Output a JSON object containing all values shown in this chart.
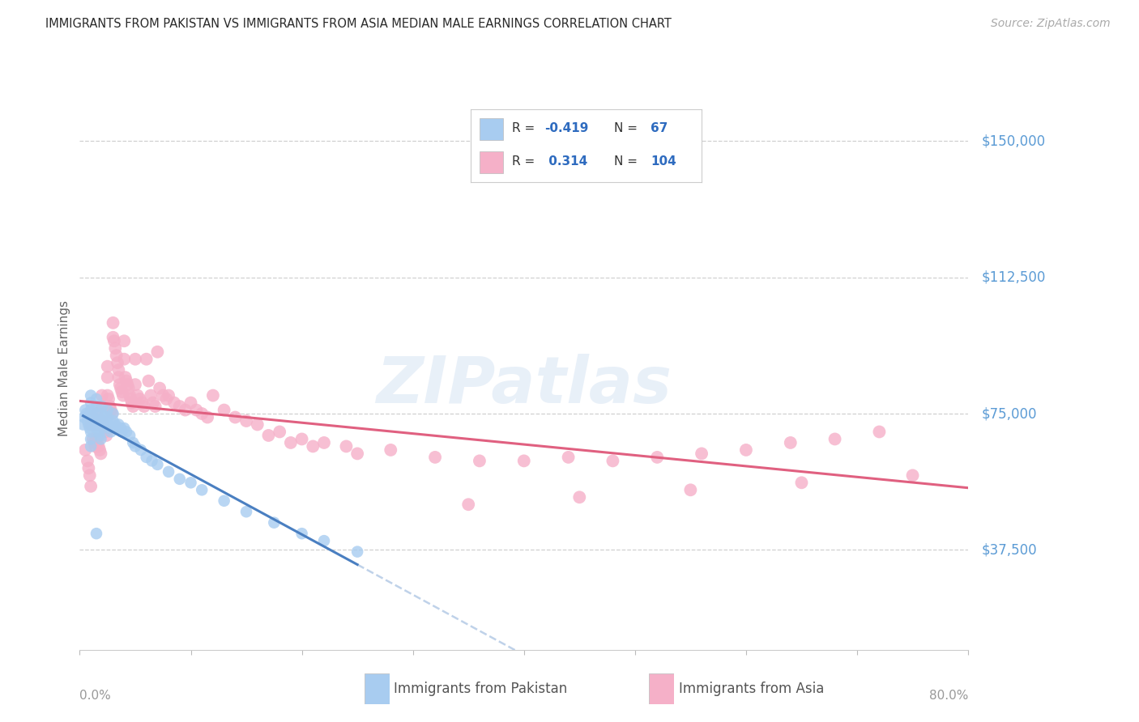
{
  "title": "IMMIGRANTS FROM PAKISTAN VS IMMIGRANTS FROM ASIA MEDIAN MALE EARNINGS CORRELATION CHART",
  "source": "Source: ZipAtlas.com",
  "ylabel": "Median Male Earnings",
  "ytick_values": [
    150000,
    112500,
    75000,
    37500
  ],
  "ytick_labels": [
    "$150,000",
    "$112,500",
    "$75,000",
    "$37,500"
  ],
  "ymin": 10000,
  "ymax": 165000,
  "xmin": 0.0,
  "xmax": 0.8,
  "color_pakistan_fill": "#a8ccf0",
  "color_asia_fill": "#f5b0c8",
  "color_pakistan_line": "#4a7fc1",
  "color_asia_line": "#e06080",
  "watermark": "ZIPatlas",
  "background_color": "#ffffff",
  "grid_color": "#d0d0d0",
  "pakistan_x": [
    0.003,
    0.004,
    0.005,
    0.006,
    0.007,
    0.008,
    0.009,
    0.01,
    0.01,
    0.01,
    0.01,
    0.01,
    0.01,
    0.01,
    0.01,
    0.01,
    0.012,
    0.013,
    0.014,
    0.015,
    0.015,
    0.015,
    0.015,
    0.015,
    0.016,
    0.017,
    0.018,
    0.019,
    0.02,
    0.02,
    0.02,
    0.02,
    0.022,
    0.023,
    0.024,
    0.025,
    0.025,
    0.026,
    0.027,
    0.028,
    0.03,
    0.03,
    0.032,
    0.033,
    0.035,
    0.037,
    0.038,
    0.04,
    0.042,
    0.045,
    0.048,
    0.05,
    0.055,
    0.06,
    0.065,
    0.07,
    0.08,
    0.09,
    0.1,
    0.11,
    0.13,
    0.15,
    0.175,
    0.2,
    0.22,
    0.25,
    0.015
  ],
  "pakistan_y": [
    72000,
    74000,
    76000,
    75000,
    73000,
    72000,
    71000,
    80000,
    78000,
    76000,
    75000,
    73000,
    72000,
    70000,
    68000,
    66000,
    74000,
    73000,
    72000,
    79000,
    77000,
    75000,
    73000,
    71000,
    71000,
    70000,
    69000,
    68000,
    77000,
    75000,
    73000,
    71000,
    74000,
    73000,
    72000,
    76000,
    74000,
    72000,
    71000,
    70000,
    75000,
    73000,
    72000,
    71000,
    72000,
    71000,
    70000,
    71000,
    70000,
    69000,
    67000,
    66000,
    65000,
    63000,
    62000,
    61000,
    59000,
    57000,
    56000,
    54000,
    51000,
    48000,
    45000,
    42000,
    40000,
    37000,
    42000
  ],
  "asia_x": [
    0.005,
    0.007,
    0.008,
    0.009,
    0.01,
    0.01,
    0.012,
    0.013,
    0.014,
    0.015,
    0.015,
    0.015,
    0.016,
    0.017,
    0.018,
    0.019,
    0.02,
    0.02,
    0.02,
    0.021,
    0.022,
    0.023,
    0.024,
    0.025,
    0.025,
    0.025,
    0.026,
    0.027,
    0.028,
    0.029,
    0.03,
    0.03,
    0.031,
    0.032,
    0.033,
    0.034,
    0.035,
    0.035,
    0.036,
    0.037,
    0.038,
    0.039,
    0.04,
    0.04,
    0.041,
    0.042,
    0.043,
    0.044,
    0.045,
    0.046,
    0.047,
    0.048,
    0.05,
    0.05,
    0.052,
    0.054,
    0.056,
    0.058,
    0.06,
    0.062,
    0.064,
    0.066,
    0.068,
    0.07,
    0.072,
    0.075,
    0.078,
    0.08,
    0.085,
    0.09,
    0.095,
    0.1,
    0.105,
    0.11,
    0.115,
    0.12,
    0.13,
    0.14,
    0.15,
    0.16,
    0.18,
    0.2,
    0.22,
    0.24,
    0.28,
    0.32,
    0.36,
    0.4,
    0.44,
    0.48,
    0.52,
    0.56,
    0.6,
    0.64,
    0.68,
    0.72,
    0.35,
    0.45,
    0.55,
    0.65,
    0.75,
    0.17,
    0.19,
    0.21,
    0.25
  ],
  "asia_y": [
    65000,
    62000,
    60000,
    58000,
    72000,
    55000,
    68000,
    67000,
    66000,
    75000,
    72000,
    68000,
    67000,
    66000,
    65000,
    64000,
    80000,
    77000,
    73000,
    72000,
    71000,
    70000,
    69000,
    88000,
    85000,
    80000,
    79000,
    77000,
    76000,
    75000,
    100000,
    96000,
    95000,
    93000,
    91000,
    89000,
    87000,
    85000,
    83000,
    82000,
    81000,
    80000,
    95000,
    90000,
    85000,
    84000,
    83000,
    82000,
    80000,
    79000,
    78000,
    77000,
    90000,
    83000,
    80000,
    79000,
    78000,
    77000,
    90000,
    84000,
    80000,
    78000,
    77000,
    92000,
    82000,
    80000,
    79000,
    80000,
    78000,
    77000,
    76000,
    78000,
    76000,
    75000,
    74000,
    80000,
    76000,
    74000,
    73000,
    72000,
    70000,
    68000,
    67000,
    66000,
    65000,
    63000,
    62000,
    62000,
    63000,
    62000,
    63000,
    64000,
    65000,
    67000,
    68000,
    70000,
    50000,
    52000,
    54000,
    56000,
    58000,
    69000,
    67000,
    66000,
    64000
  ]
}
